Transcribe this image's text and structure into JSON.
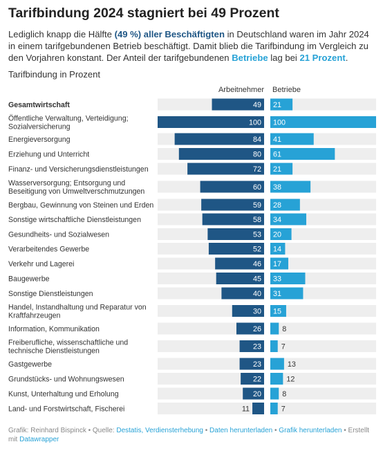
{
  "title": "Tarifbindung 2024 stagniert bei 49 Prozent",
  "subtitle": {
    "p1": "Lediglich knapp die Hälfte ",
    "h1": "(49 %) aller Beschäftigten",
    "p2": " in Deutschland waren im Jahr 2024 in einem tarifgebundenen Betrieb beschäftigt. Damit blieb die Tarifbindung im Vergleich zu den Vorjahren konstant. Der Anteil der tarifgebundenen ",
    "h2": "Betriebe",
    "p3": " lag bei ",
    "h3": "21 Prozent",
    "p4": "."
  },
  "section_label": "Tarifbindung in Prozent",
  "colors": {
    "dark": "#1f5685",
    "light": "#27a2d6",
    "track": "#eeeeee",
    "text": "#333333"
  },
  "chart_data": {
    "type": "bar",
    "series": [
      {
        "name": "Arbeitnehmer",
        "values": [
          49,
          100,
          84,
          80,
          72,
          60,
          59,
          58,
          53,
          52,
          46,
          45,
          40,
          30,
          26,
          23,
          23,
          22,
          20,
          11
        ]
      },
      {
        "name": "Betriebe",
        "values": [
          21,
          100,
          41,
          61,
          21,
          38,
          28,
          34,
          20,
          14,
          17,
          33,
          31,
          15,
          8,
          7,
          13,
          12,
          8,
          7
        ]
      }
    ],
    "categories": [
      "Gesamtwirtschaft",
      [
        "Öffentliche Verwaltung, Verteidigung;",
        "Sozialversicherung"
      ],
      "Energieversorgung",
      "Erziehung und Unterricht",
      "Finanz- und Versicherungsdienstleistungen",
      [
        "Wasserversorgung; Entsorgung und",
        "Beseitigung von Umweltverschmutzungen"
      ],
      "Bergbau, Gewinnung von Steinen und Erden",
      "Sonstige wirtschaftliche Dienstleistungen",
      "Gesundheits- und Sozialwesen",
      "Verarbeitendes Gewerbe",
      "Verkehr und Lagerei",
      "Baugewerbe",
      "Sonstige Dienstleistungen",
      [
        "Handel, Instandhaltung und Reparatur von",
        "Kraftfahrzeugen"
      ],
      "Information, Kommunikation",
      [
        "Freiberufliche, wissenschaftliche und",
        "technische Dienstleistungen"
      ],
      "Gastgewerbe",
      "Grundstücks- und Wohnungswesen",
      "Kunst, Unterhaltung und Erholung",
      "Land- und Forstwirtschaft, Fischerei"
    ],
    "bold_categories": [
      "Gesamtwirtschaft"
    ],
    "xlim": [
      0,
      100
    ]
  },
  "footer": {
    "prefix": "Grafik: Reinhard Bispinck • Quelle: ",
    "link1": "Destatis, Verdiensterhebung",
    "sep1": " • ",
    "link2": "Daten herunterladen",
    "sep2": " • ",
    "link3": "Grafik herunterladen",
    "mid": " • Erstellt mit ",
    "link4": "Datawrapper"
  }
}
